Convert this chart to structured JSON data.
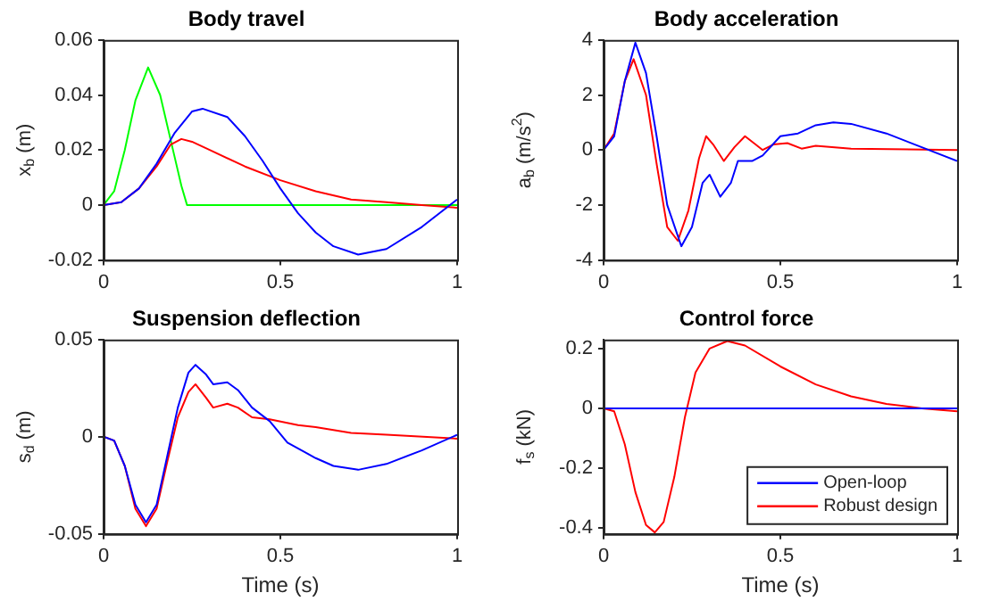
{
  "chart_data": [
    {
      "type": "line",
      "title": "Body travel",
      "ylabel": "x$_{b}$ (m)",
      "xlim": [
        0,
        1
      ],
      "xticks": [
        0,
        0.5,
        1
      ],
      "ylim": [
        -0.02,
        0.06
      ],
      "yticks": [
        -0.02,
        0,
        0.02,
        0.04,
        0.06
      ],
      "grid": false,
      "legend": false,
      "series": [
        {
          "color": "#0000ff",
          "x": [
            0,
            0.05,
            0.1,
            0.15,
            0.2,
            0.25,
            0.28,
            0.35,
            0.4,
            0.45,
            0.5,
            0.55,
            0.6,
            0.65,
            0.72,
            0.8,
            0.9,
            1
          ],
          "values": [
            0,
            0.001,
            0.006,
            0.015,
            0.026,
            0.034,
            0.035,
            0.032,
            0.025,
            0.016,
            0.006,
            -0.003,
            -0.01,
            -0.015,
            -0.018,
            -0.016,
            -0.008,
            0.002
          ]
        },
        {
          "color": "#ff0000",
          "x": [
            0,
            0.05,
            0.1,
            0.15,
            0.19,
            0.22,
            0.25,
            0.3,
            0.4,
            0.5,
            0.6,
            0.7,
            0.8,
            0.9,
            1
          ],
          "values": [
            0,
            0.001,
            0.006,
            0.014,
            0.022,
            0.024,
            0.023,
            0.02,
            0.014,
            0.009,
            0.005,
            0.002,
            0.001,
            0,
            -0.001
          ]
        },
        {
          "color": "#00ff00",
          "x": [
            0,
            0.03,
            0.06,
            0.09,
            0.126,
            0.16,
            0.2,
            0.22,
            0.236,
            0.3,
            1
          ],
          "values": [
            0,
            0.005,
            0.02,
            0.038,
            0.05,
            0.04,
            0.018,
            0.007,
            0,
            0,
            0
          ]
        }
      ]
    },
    {
      "type": "line",
      "title": "Body acceleration",
      "ylabel": "a$_{b}$ (m/s$^{2}$)",
      "xlim": [
        0,
        1
      ],
      "xticks": [
        0,
        0.5,
        1
      ],
      "ylim": [
        -4,
        4
      ],
      "yticks": [
        -4,
        -2,
        0,
        2,
        4
      ],
      "grid": false,
      "legend": false,
      "series": [
        {
          "color": "#0000ff",
          "x": [
            0,
            0.03,
            0.06,
            0.09,
            0.12,
            0.15,
            0.18,
            0.22,
            0.25,
            0.28,
            0.3,
            0.33,
            0.36,
            0.38,
            0.42,
            0.45,
            0.5,
            0.55,
            0.6,
            0.65,
            0.7,
            0.8,
            0.9,
            1
          ],
          "values": [
            0,
            0.5,
            2.5,
            3.9,
            2.8,
            0.5,
            -2,
            -3.5,
            -2.8,
            -1.2,
            -0.9,
            -1.7,
            -1.2,
            -0.4,
            -0.4,
            -0.2,
            0.5,
            0.6,
            0.9,
            1,
            0.95,
            0.6,
            0.1,
            -0.4
          ]
        },
        {
          "color": "#ff0000",
          "x": [
            0,
            0.03,
            0.06,
            0.085,
            0.12,
            0.15,
            0.18,
            0.21,
            0.24,
            0.27,
            0.29,
            0.31,
            0.34,
            0.37,
            0.4,
            0.43,
            0.45,
            0.48,
            0.52,
            0.56,
            0.6,
            0.7,
            1
          ],
          "values": [
            0,
            0.6,
            2.5,
            3.3,
            2,
            -0.5,
            -2.8,
            -3.3,
            -2.2,
            -0.3,
            0.5,
            0.2,
            -0.4,
            0.1,
            0.5,
            0.2,
            0,
            0.2,
            0.25,
            0.05,
            0.15,
            0.05,
            0
          ]
        }
      ]
    },
    {
      "type": "line",
      "title": "Suspension deflection",
      "xlabel": "Time (s)",
      "ylabel": "s$_{d}$ (m)",
      "xlim": [
        0,
        1
      ],
      "xticks": [
        0,
        0.5,
        1
      ],
      "ylim": [
        -0.05,
        0.05
      ],
      "yticks": [
        -0.05,
        0,
        0.05
      ],
      "grid": false,
      "legend": false,
      "series": [
        {
          "color": "#0000ff",
          "x": [
            0,
            0.03,
            0.06,
            0.09,
            0.12,
            0.15,
            0.18,
            0.21,
            0.24,
            0.26,
            0.29,
            0.31,
            0.35,
            0.38,
            0.42,
            0.47,
            0.52,
            0.6,
            0.65,
            0.72,
            0.8,
            0.9,
            1
          ],
          "values": [
            0,
            -0.002,
            -0.015,
            -0.035,
            -0.044,
            -0.035,
            -0.01,
            0.015,
            0.033,
            0.037,
            0.032,
            0.027,
            0.028,
            0.024,
            0.015,
            0.008,
            -0.003,
            -0.011,
            -0.015,
            -0.017,
            -0.014,
            -0.007,
            0.001
          ]
        },
        {
          "color": "#ff0000",
          "x": [
            0,
            0.03,
            0.06,
            0.09,
            0.12,
            0.15,
            0.18,
            0.21,
            0.24,
            0.26,
            0.29,
            0.31,
            0.35,
            0.38,
            0.42,
            0.47,
            0.55,
            0.6,
            0.7,
            0.8,
            1
          ],
          "values": [
            0,
            -0.002,
            -0.015,
            -0.037,
            -0.046,
            -0.037,
            -0.013,
            0.01,
            0.023,
            0.027,
            0.02,
            0.015,
            0.017,
            0.015,
            0.01,
            0.009,
            0.006,
            0.005,
            0.002,
            0.001,
            -0.001
          ]
        }
      ]
    },
    {
      "type": "line",
      "title": "Control force",
      "xlabel": "Time (s)",
      "ylabel": "f$_{s}$ (kN)",
      "xlim": [
        0,
        1
      ],
      "xticks": [
        0,
        0.5,
        1
      ],
      "ylim": [
        -0.42,
        0.23
      ],
      "yticks": [
        -0.4,
        -0.2,
        0,
        0.2
      ],
      "grid": false,
      "legend": "bottom right",
      "series": [
        {
          "name": "Open-loop",
          "color": "#0000ff",
          "x": [
            0,
            1
          ],
          "values": [
            0,
            0
          ]
        },
        {
          "name": "Robust design",
          "color": "#ff0000",
          "x": [
            0,
            0.03,
            0.06,
            0.09,
            0.12,
            0.145,
            0.17,
            0.2,
            0.23,
            0.26,
            0.3,
            0.35,
            0.4,
            0.5,
            0.6,
            0.7,
            0.8,
            0.9,
            1
          ],
          "values": [
            0,
            -0.01,
            -0.12,
            -0.28,
            -0.39,
            -0.415,
            -0.38,
            -0.23,
            -0.03,
            0.12,
            0.2,
            0.225,
            0.21,
            0.14,
            0.08,
            0.04,
            0.015,
            0,
            -0.01
          ]
        }
      ]
    }
  ]
}
